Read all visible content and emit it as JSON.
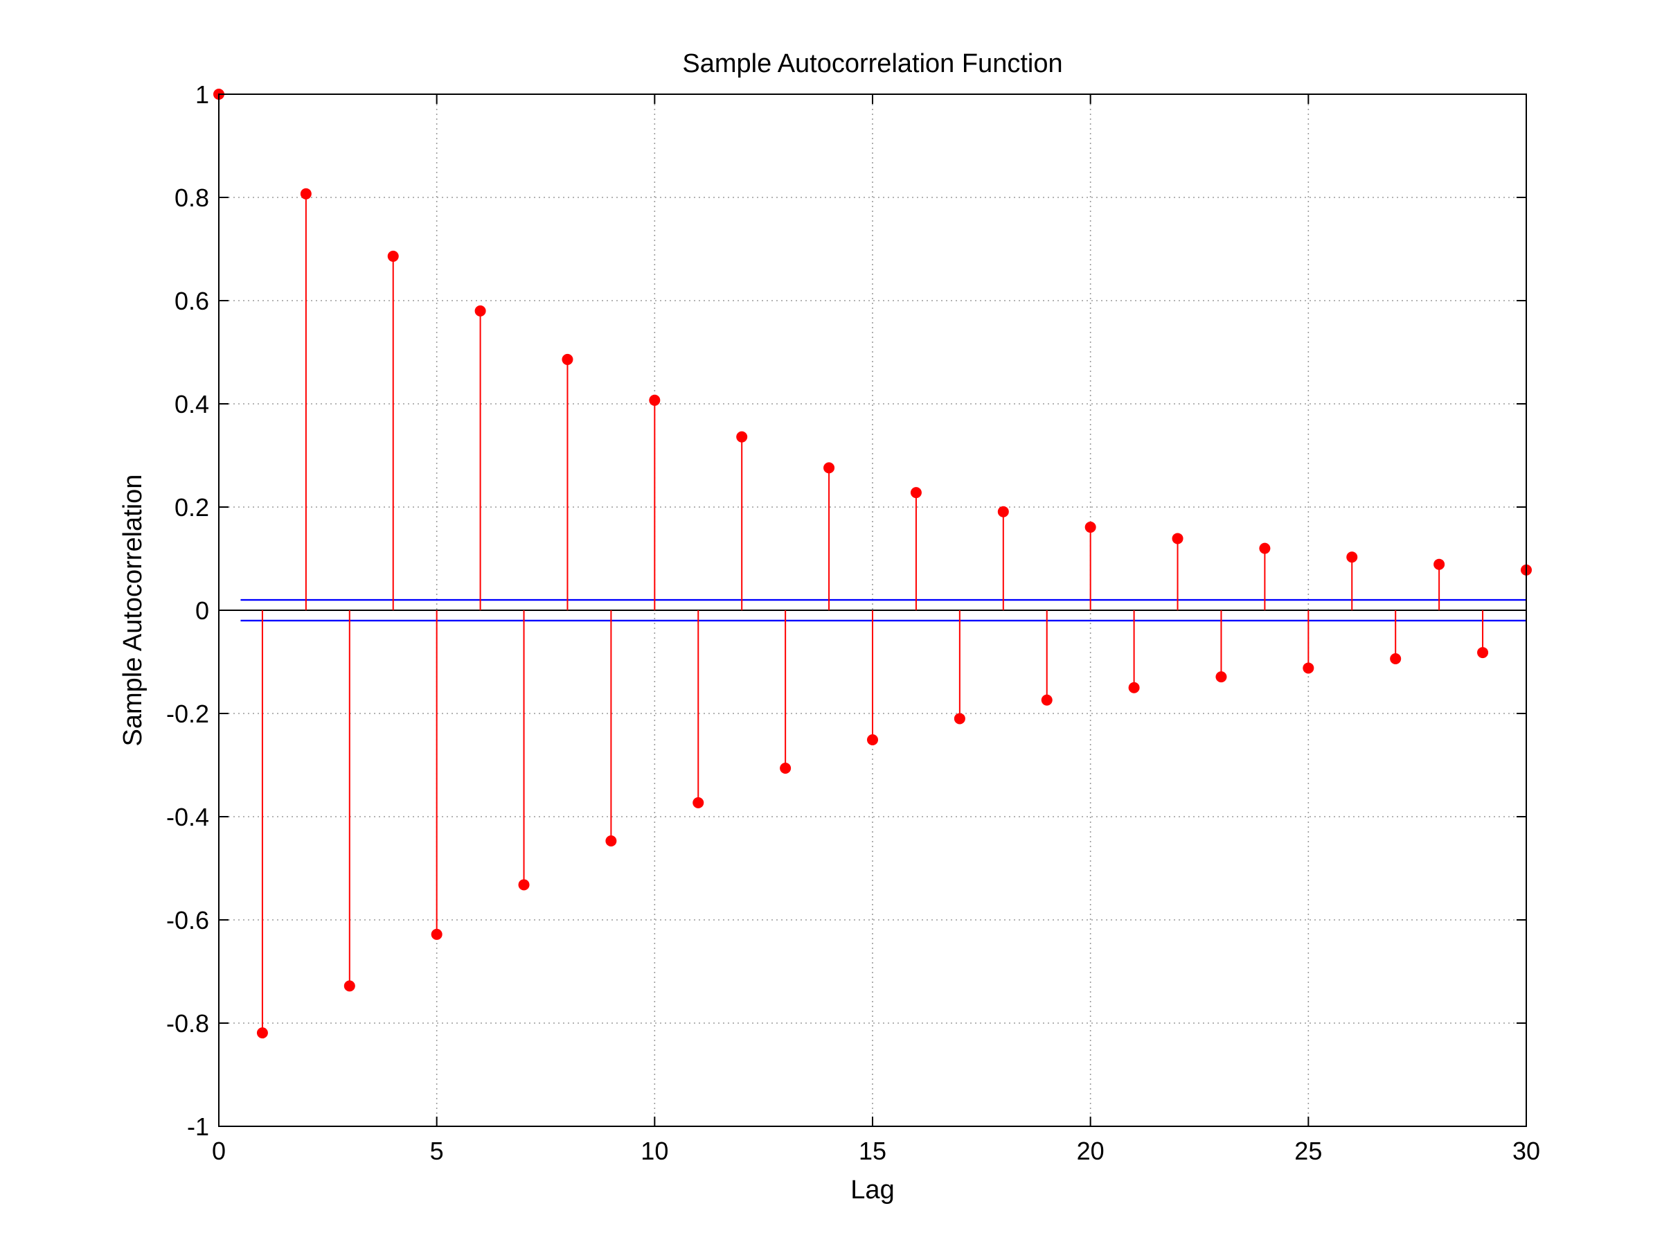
{
  "chart_data": {
    "type": "stem",
    "title": "Sample Autocorrelation Function",
    "xlabel": "Lag",
    "ylabel": "Sample Autocorrelation",
    "xlim": [
      0,
      30
    ],
    "ylim": [
      -1,
      1
    ],
    "x_ticks": [
      0,
      5,
      10,
      15,
      20,
      25,
      30
    ],
    "y_ticks": [
      -1,
      -0.8,
      -0.6,
      -0.4,
      -0.2,
      0,
      0.2,
      0.4,
      0.6,
      0.8,
      1
    ],
    "x_tick_labels": [
      "0",
      "5",
      "10",
      "15",
      "20",
      "25",
      "30"
    ],
    "y_tick_labels": [
      "-1",
      "-0.8",
      "-0.6",
      "-0.4",
      "-0.2",
      "0",
      "0.2",
      "0.4",
      "0.6",
      "0.8",
      "1"
    ],
    "grid": true,
    "series": [
      {
        "type": "stem",
        "color": "#ff0000",
        "x": [
          0,
          1,
          2,
          3,
          4,
          5,
          6,
          7,
          8,
          9,
          10,
          11,
          12,
          13,
          14,
          15,
          16,
          17,
          18,
          19,
          20,
          21,
          22,
          23,
          24,
          25,
          26,
          27,
          28,
          29,
          30
        ],
        "values": [
          1.0,
          -0.819,
          0.807,
          -0.728,
          0.686,
          -0.628,
          0.58,
          -0.532,
          0.486,
          -0.447,
          0.407,
          -0.373,
          0.336,
          -0.306,
          0.276,
          -0.251,
          0.228,
          -0.21,
          0.191,
          -0.174,
          0.161,
          -0.15,
          0.139,
          -0.129,
          0.12,
          -0.112,
          0.103,
          -0.094,
          0.089,
          -0.082,
          0.078
        ]
      }
    ],
    "confidence_bounds": {
      "color": "#0000ff",
      "upper": 0.02,
      "lower": -0.02,
      "x_range": [
        0.5,
        30
      ]
    },
    "zero_line_color": "#000000"
  }
}
